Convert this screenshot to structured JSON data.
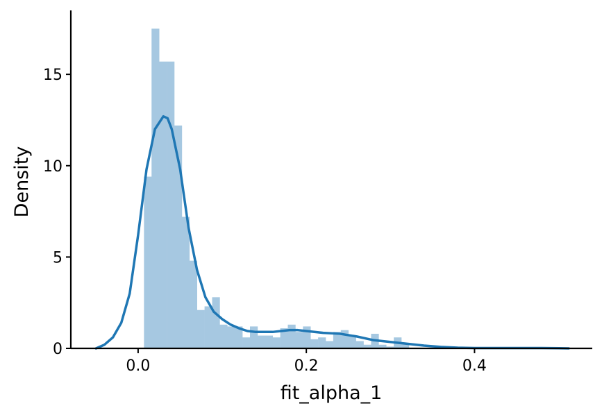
{
  "chart_data": {
    "type": "histogram",
    "xlabel": "fit_alpha_1",
    "ylabel": "Density",
    "xlim": [
      -0.08,
      0.54
    ],
    "ylim": [
      0,
      18.5
    ],
    "x_ticks": [
      {
        "value": 0.0,
        "label": "0.0"
      },
      {
        "value": 0.2,
        "label": "0.2"
      },
      {
        "value": 0.4,
        "label": "0.4"
      }
    ],
    "y_ticks": [
      {
        "value": 0,
        "label": "0"
      },
      {
        "value": 5,
        "label": "5"
      },
      {
        "value": 10,
        "label": "10"
      },
      {
        "value": 15,
        "label": "15"
      }
    ],
    "grid": false,
    "spines": [
      "left",
      "bottom"
    ],
    "histogram": {
      "bin_start": 0.007,
      "bin_width": 0.009,
      "density": [
        9.4,
        17.5,
        15.7,
        15.7,
        12.2,
        7.2,
        4.8,
        2.1,
        2.3,
        2.8,
        1.3,
        1.2,
        1.2,
        0.6,
        1.2,
        0.7,
        0.7,
        0.6,
        1.1,
        1.3,
        0.9,
        1.2,
        0.5,
        0.6,
        0.4,
        0.9,
        1.0,
        0.7,
        0.4,
        0.2,
        0.8,
        0.2,
        0.1,
        0.6,
        0.3
      ],
      "color": "#a6c8e1"
    },
    "kde": {
      "color": "#1f77b4",
      "x": [
        -0.05,
        -0.04,
        -0.03,
        -0.02,
        -0.01,
        0.0,
        0.01,
        0.02,
        0.03,
        0.035,
        0.04,
        0.05,
        0.06,
        0.07,
        0.08,
        0.09,
        0.1,
        0.11,
        0.12,
        0.13,
        0.14,
        0.15,
        0.16,
        0.17,
        0.18,
        0.19,
        0.2,
        0.22,
        0.24,
        0.26,
        0.28,
        0.3,
        0.32,
        0.34,
        0.36,
        0.38,
        0.4,
        0.42,
        0.44,
        0.46,
        0.48,
        0.5,
        0.512
      ],
      "y": [
        0.0,
        0.2,
        0.6,
        1.4,
        3.0,
        6.2,
        9.8,
        12.0,
        12.7,
        12.6,
        12.0,
        9.8,
        6.6,
        4.3,
        2.8,
        2.0,
        1.6,
        1.3,
        1.1,
        0.95,
        0.9,
        0.9,
        0.9,
        0.95,
        1.0,
        1.0,
        0.95,
        0.85,
        0.8,
        0.65,
        0.45,
        0.35,
        0.25,
        0.15,
        0.08,
        0.04,
        0.02,
        0.02,
        0.02,
        0.02,
        0.02,
        0.01,
        0.0
      ]
    }
  }
}
